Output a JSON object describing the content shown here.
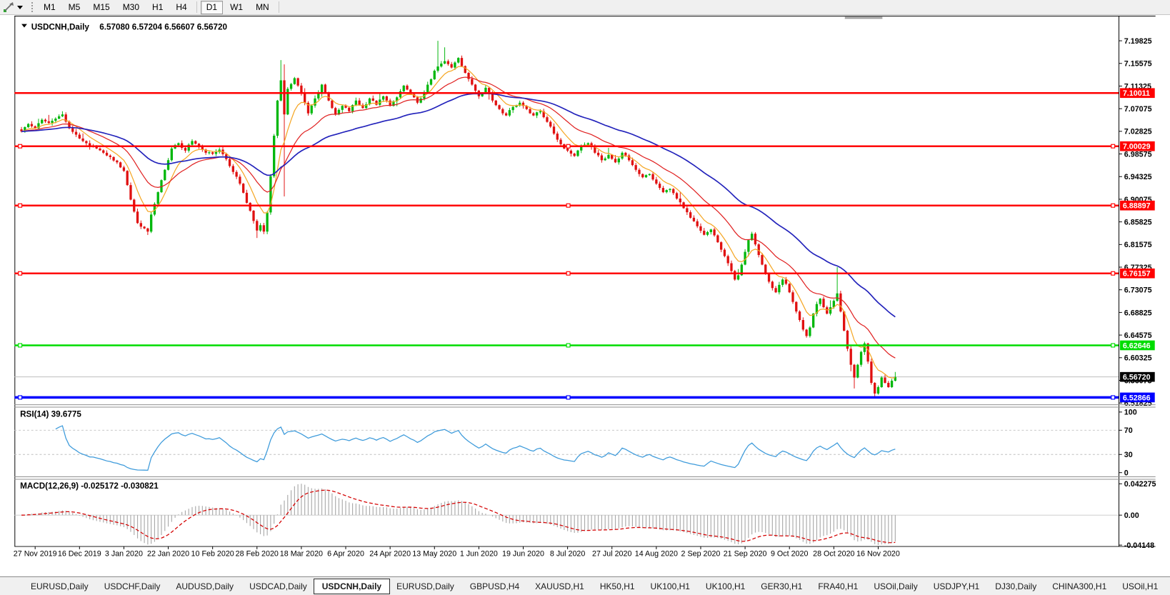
{
  "toolbar": {
    "timeframes": [
      "M1",
      "M5",
      "M15",
      "M30",
      "H1",
      "H4",
      "D1",
      "W1",
      "MN"
    ],
    "active_timeframe": "D1"
  },
  "window": {
    "title_symbol": "USDCNH,Daily",
    "title_ohlc": "6.57080 6.57204 6.56607 6.56720"
  },
  "price_axis": {
    "ticks": [
      "7.19825",
      "7.15575",
      "7.11325",
      "7.07075",
      "7.02825",
      "6.98575",
      "6.94325",
      "6.90075",
      "6.85825",
      "6.81575",
      "6.77325",
      "6.73075",
      "6.68825",
      "6.64575",
      "6.60325",
      "6.56075",
      "6.51825"
    ]
  },
  "levels": [
    {
      "price": "7.10011",
      "value": 7.10011,
      "color": "#FF0000",
      "width": 2.6,
      "selected": false
    },
    {
      "price": "7.00029",
      "value": 7.00029,
      "color": "#FF0000",
      "width": 2.6,
      "selected": true
    },
    {
      "price": "6.88897",
      "value": 6.88897,
      "color": "#FF0000",
      "width": 2.6,
      "selected": true
    },
    {
      "price": "6.76157",
      "value": 6.76157,
      "color": "#FF0000",
      "width": 2.6,
      "selected": true
    },
    {
      "price": "6.62646",
      "value": 6.62646,
      "color": "#00DC00",
      "width": 2.6,
      "selected": true
    },
    {
      "price": "6.52866",
      "value": 6.52866,
      "color": "#0000FF",
      "width": 3.6,
      "selected": true
    }
  ],
  "current_price": {
    "label": "6.56720",
    "value": 6.5672
  },
  "indicators": {
    "rsi": {
      "label": "RSI(14) 39.6775",
      "period": 14,
      "value": 39.6775,
      "ticks": [
        100,
        70,
        30,
        0
      ],
      "dashed_levels": [
        70,
        30
      ]
    },
    "macd": {
      "label": "MACD(12,26,9) -0.025172 -0.030821",
      "ticks": [
        "0.042275",
        "0.00",
        "-0.04148"
      ],
      "tick_values": [
        0.042275,
        0,
        -0.04148
      ]
    }
  },
  "date_axis": {
    "labels": [
      "27 Nov 2019",
      "16 Dec 2019",
      "3 Jan 2020",
      "22 Jan 2020",
      "10 Feb 2020",
      "28 Feb 2020",
      "18 Mar 2020",
      "6 Apr 2020",
      "24 Apr 2020",
      "13 May 2020",
      "1 Jun 2020",
      "19 Jun 2020",
      "8 Jul 2020",
      "27 Jul 2020",
      "14 Aug 2020",
      "2 Sep 2020",
      "21 Sep 2020",
      "9 Oct 2020",
      "28 Oct 2020",
      "16 Nov 2020"
    ],
    "bars_per_label": 13,
    "first_label_bar": 4
  },
  "tabs": {
    "items": [
      "EURUSD,Daily",
      "USDCHF,Daily",
      "AUDUSD,Daily",
      "USDCAD,Daily",
      "USDCNH,Daily",
      "EURUSD,Daily",
      "GBPUSD,H4",
      "XAUUSD,H1",
      "HK50,H1",
      "UK100,H1",
      "UK100,H1",
      "GER30,H1",
      "FRA40,H1",
      "USOil,Daily",
      "USDJPY,H1",
      "DJ30,Daily",
      "CHINA300,H1",
      "USOil,H1"
    ],
    "active_index": 4
  },
  "colors": {
    "up": "#00B70C",
    "down": "#E01010",
    "ma_fast": "#F5A623",
    "ma_mid": "#E02020",
    "ma_slow": "#2222BB",
    "rsi_line": "#3E9BDB",
    "rsi_grid": "#BFBFBF",
    "macd_hist": "#ABABAB",
    "macd_signal": "#D40000",
    "macd_zero": "#C8C8C8",
    "current_line": "#BEBEBE",
    "current_tag_bg": "#000000",
    "axis": "#000000",
    "separator": "#909090",
    "shift_marker": "#9E9E9E"
  },
  "chart_data": {
    "type": "candlestick",
    "symbol": "USDCNH",
    "timeframe": "Daily",
    "ohlc_current": {
      "open": "6.57080",
      "high": "6.57204",
      "low": "6.56607",
      "close": "6.56720"
    },
    "bars": 257,
    "y_range": [
      6.51825,
      7.19825
    ],
    "close_anchors": [
      [
        0,
        7.028
      ],
      [
        2,
        7.042
      ],
      [
        4,
        7.034
      ],
      [
        6,
        7.05
      ],
      [
        8,
        7.044
      ],
      [
        10,
        7.052
      ],
      [
        12,
        7.06
      ],
      [
        14,
        7.034
      ],
      [
        16,
        7.022
      ],
      [
        18,
        7.01
      ],
      [
        20,
        7.0
      ],
      [
        22,
        6.996
      ],
      [
        24,
        6.988
      ],
      [
        26,
        6.98
      ],
      [
        28,
        6.97
      ],
      [
        30,
        6.954
      ],
      [
        32,
        6.9
      ],
      [
        34,
        6.856
      ],
      [
        36,
        6.846
      ],
      [
        37,
        6.84
      ],
      [
        38,
        6.872
      ],
      [
        40,
        6.914
      ],
      [
        42,
        6.956
      ],
      [
        44,
        6.996
      ],
      [
        46,
        7.006
      ],
      [
        48,
        6.992
      ],
      [
        50,
        7.01
      ],
      [
        52,
        7.0
      ],
      [
        54,
        6.988
      ],
      [
        56,
        6.986
      ],
      [
        58,
        6.994
      ],
      [
        60,
        6.976
      ],
      [
        62,
        6.952
      ],
      [
        64,
        6.93
      ],
      [
        66,
        6.894
      ],
      [
        68,
        6.86
      ],
      [
        69,
        6.842
      ],
      [
        70,
        6.852
      ],
      [
        71,
        6.84
      ],
      [
        72,
        6.876
      ],
      [
        73,
        6.944
      ],
      [
        74,
        7.02
      ],
      [
        75,
        7.086
      ],
      [
        76,
        7.124
      ],
      [
        77,
        7.06
      ],
      [
        78,
        7.108
      ],
      [
        80,
        7.128
      ],
      [
        82,
        7.1
      ],
      [
        84,
        7.062
      ],
      [
        86,
        7.09
      ],
      [
        88,
        7.116
      ],
      [
        90,
        7.086
      ],
      [
        92,
        7.06
      ],
      [
        94,
        7.076
      ],
      [
        96,
        7.066
      ],
      [
        98,
        7.086
      ],
      [
        100,
        7.072
      ],
      [
        102,
        7.09
      ],
      [
        104,
        7.078
      ],
      [
        106,
        7.094
      ],
      [
        108,
        7.076
      ],
      [
        110,
        7.092
      ],
      [
        112,
        7.114
      ],
      [
        114,
        7.098
      ],
      [
        116,
        7.082
      ],
      [
        118,
        7.102
      ],
      [
        120,
        7.126
      ],
      [
        121,
        7.142
      ],
      [
        122,
        7.15
      ],
      [
        124,
        7.16
      ],
      [
        126,
        7.148
      ],
      [
        128,
        7.166
      ],
      [
        130,
        7.138
      ],
      [
        132,
        7.116
      ],
      [
        134,
        7.094
      ],
      [
        136,
        7.11
      ],
      [
        138,
        7.086
      ],
      [
        140,
        7.07
      ],
      [
        142,
        7.058
      ],
      [
        144,
        7.074
      ],
      [
        146,
        7.082
      ],
      [
        148,
        7.07
      ],
      [
        150,
        7.058
      ],
      [
        152,
        7.066
      ],
      [
        154,
        7.046
      ],
      [
        156,
        7.024
      ],
      [
        158,
        7.004
      ],
      [
        160,
        6.992
      ],
      [
        162,
        6.982
      ],
      [
        164,
        7.0
      ],
      [
        166,
        7.006
      ],
      [
        168,
        6.988
      ],
      [
        170,
        6.974
      ],
      [
        172,
        6.984
      ],
      [
        174,
        6.97
      ],
      [
        176,
        6.988
      ],
      [
        178,
        6.974
      ],
      [
        180,
        6.956
      ],
      [
        182,
        6.942
      ],
      [
        184,
        6.948
      ],
      [
        186,
        6.93
      ],
      [
        188,
        6.914
      ],
      [
        190,
        6.92
      ],
      [
        192,
        6.902
      ],
      [
        194,
        6.884
      ],
      [
        196,
        6.866
      ],
      [
        198,
        6.85
      ],
      [
        200,
        6.834
      ],
      [
        202,
        6.844
      ],
      [
        204,
        6.82
      ],
      [
        206,
        6.794
      ],
      [
        208,
        6.766
      ],
      [
        209,
        6.75
      ],
      [
        210,
        6.758
      ],
      [
        211,
        6.778
      ],
      [
        212,
        6.802
      ],
      [
        213,
        6.824
      ],
      [
        214,
        6.836
      ],
      [
        215,
        6.816
      ],
      [
        216,
        6.796
      ],
      [
        217,
        6.778
      ],
      [
        218,
        6.76
      ],
      [
        219,
        6.746
      ],
      [
        220,
        6.734
      ],
      [
        221,
        6.726
      ],
      [
        222,
        6.74
      ],
      [
        223,
        6.75
      ],
      [
        224,
        6.742
      ],
      [
        225,
        6.726
      ],
      [
        226,
        6.708
      ],
      [
        227,
        6.69
      ],
      [
        228,
        6.674
      ],
      [
        229,
        6.656
      ],
      [
        230,
        6.644
      ],
      [
        231,
        6.66
      ],
      [
        232,
        6.686
      ],
      [
        233,
        6.704
      ],
      [
        234,
        6.714
      ],
      [
        235,
        6.698
      ],
      [
        236,
        6.686
      ],
      [
        237,
        6.698
      ],
      [
        238,
        6.71
      ],
      [
        239,
        6.724
      ],
      [
        240,
        6.69
      ],
      [
        241,
        6.654
      ],
      [
        242,
        6.62
      ],
      [
        243,
        6.59
      ],
      [
        244,
        6.566
      ],
      [
        245,
        6.59
      ],
      [
        246,
        6.614
      ],
      [
        247,
        6.63
      ],
      [
        248,
        6.596
      ],
      [
        249,
        6.556
      ],
      [
        250,
        6.536
      ],
      [
        251,
        6.548
      ],
      [
        252,
        6.566
      ],
      [
        253,
        6.556
      ],
      [
        254,
        6.548
      ],
      [
        255,
        6.56
      ],
      [
        256,
        6.5672
      ]
    ],
    "wick_overrides": [
      {
        "i": 12,
        "high": 7.066
      },
      {
        "i": 37,
        "low": 6.8336
      },
      {
        "i": 69,
        "low": 6.828
      },
      {
        "i": 76,
        "high": 7.162
      },
      {
        "i": 77,
        "low": 6.906,
        "high": 7.154
      },
      {
        "i": 122,
        "high": 7.19825
      },
      {
        "i": 124,
        "high": 7.186
      },
      {
        "i": 239,
        "high": 6.7733
      },
      {
        "i": 244,
        "low": 6.5455
      },
      {
        "i": 250,
        "low": 6.527
      }
    ],
    "moving_averages": [
      {
        "name": "fast",
        "period": 8,
        "color": "#F5A623"
      },
      {
        "name": "mid",
        "period": 21,
        "color": "#E02020"
      },
      {
        "name": "slow",
        "period": 50,
        "color": "#2222BB"
      }
    ]
  }
}
